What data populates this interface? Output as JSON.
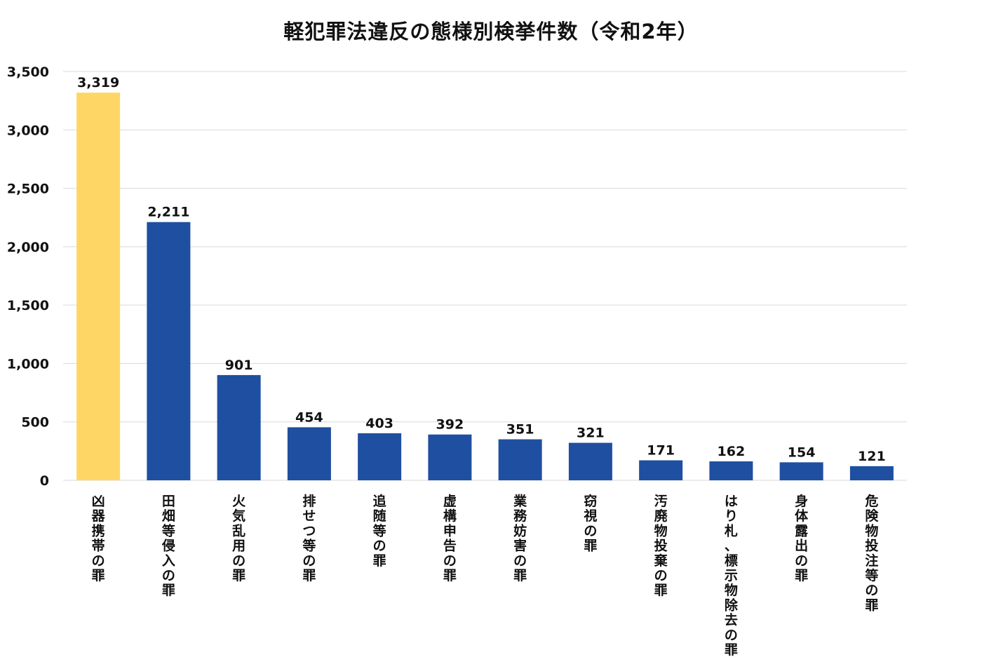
{
  "chart_data": {
    "type": "bar",
    "title": "軽犯罪法違反の態様別検挙件数（令和2年）",
    "xlabel": "",
    "ylabel": "",
    "ylim": [
      0,
      3500
    ],
    "yticks": [
      0,
      500,
      1000,
      1500,
      2000,
      2500,
      3000,
      3500
    ],
    "ytick_labels": [
      "0",
      "500",
      "1,000",
      "1,500",
      "2,000",
      "2,500",
      "3,000",
      "3,500"
    ],
    "grid": true,
    "legend": "none",
    "categories": [
      "凶器携帯の罪",
      "田畑等侵入の罪",
      "火気乱用の罪",
      "排せつ等の罪",
      "追随等の罪",
      "虚構申告の罪",
      "業務妨害の罪",
      "窃視の罪",
      "汚廃物投棄の罪",
      "はり札、標示物除去の罪",
      "身体露出の罪",
      "危険物投注等の罪"
    ],
    "values": [
      3319,
      2211,
      901,
      454,
      403,
      392,
      351,
      321,
      171,
      162,
      154,
      121
    ],
    "data_labels": [
      "3,319",
      "2,211",
      "901",
      "454",
      "403",
      "392",
      "351",
      "321",
      "171",
      "162",
      "154",
      "121"
    ],
    "colors": {
      "highlight": "#FDD666",
      "bar": "#1F4FA0",
      "grid": "#D9D9D9",
      "text": "#111111"
    },
    "highlight_index": 0
  }
}
